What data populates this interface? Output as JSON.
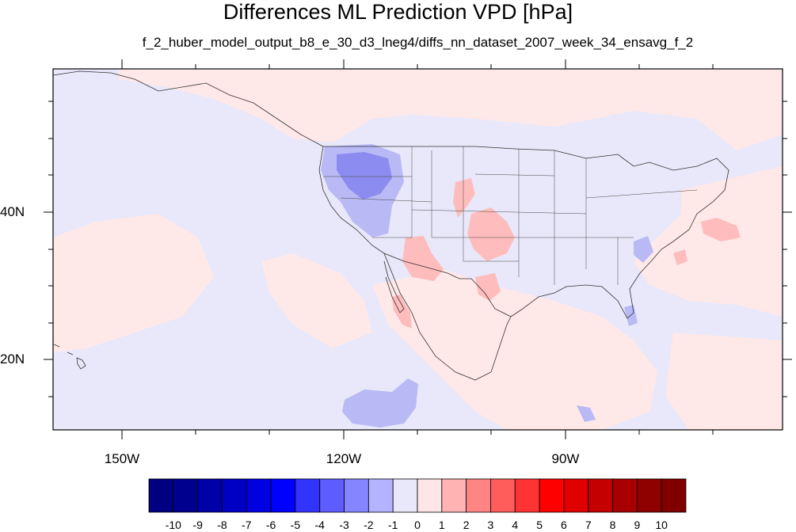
{
  "title": "Differences ML Prediction VPD [hPa]",
  "subtitle": "f_2_huber_model_output_b8_e_30_d3_lneg4/diffs_nn_dataset_2007_week_34_ensavg_f_2",
  "axes": {
    "lon_labels": [
      "150W",
      "120W",
      "90W"
    ],
    "lat_labels": [
      "40N",
      "20N"
    ]
  },
  "colorbar": {
    "tick_labels": [
      "-10",
      "-9",
      "-8",
      "-7",
      "-6",
      "-5",
      "-4",
      "-3",
      "-2",
      "-1",
      "0",
      "1",
      "2",
      "3",
      "4",
      "5",
      "6",
      "7",
      "8",
      "9",
      "10"
    ],
    "colors": [
      "#000080",
      "#00008f",
      "#0000a8",
      "#0000c4",
      "#0000e0",
      "#0000ff",
      "#3333ff",
      "#5c5cff",
      "#8585ff",
      "#b3b3ff",
      "#e8e8fa",
      "#ffe6e6",
      "#ffb3b3",
      "#ff8585",
      "#ff5c5c",
      "#ff3333",
      "#ff0000",
      "#e00000",
      "#c40000",
      "#a80000",
      "#8f0000",
      "#800000"
    ]
  },
  "map_colors": {
    "background_neutral_blue": "#e8e8fa",
    "light_pink": "#ffe8e8",
    "pink": "#ffbcbc",
    "light_blue": "#b9b9f5",
    "blue": "#8c8cf0"
  }
}
